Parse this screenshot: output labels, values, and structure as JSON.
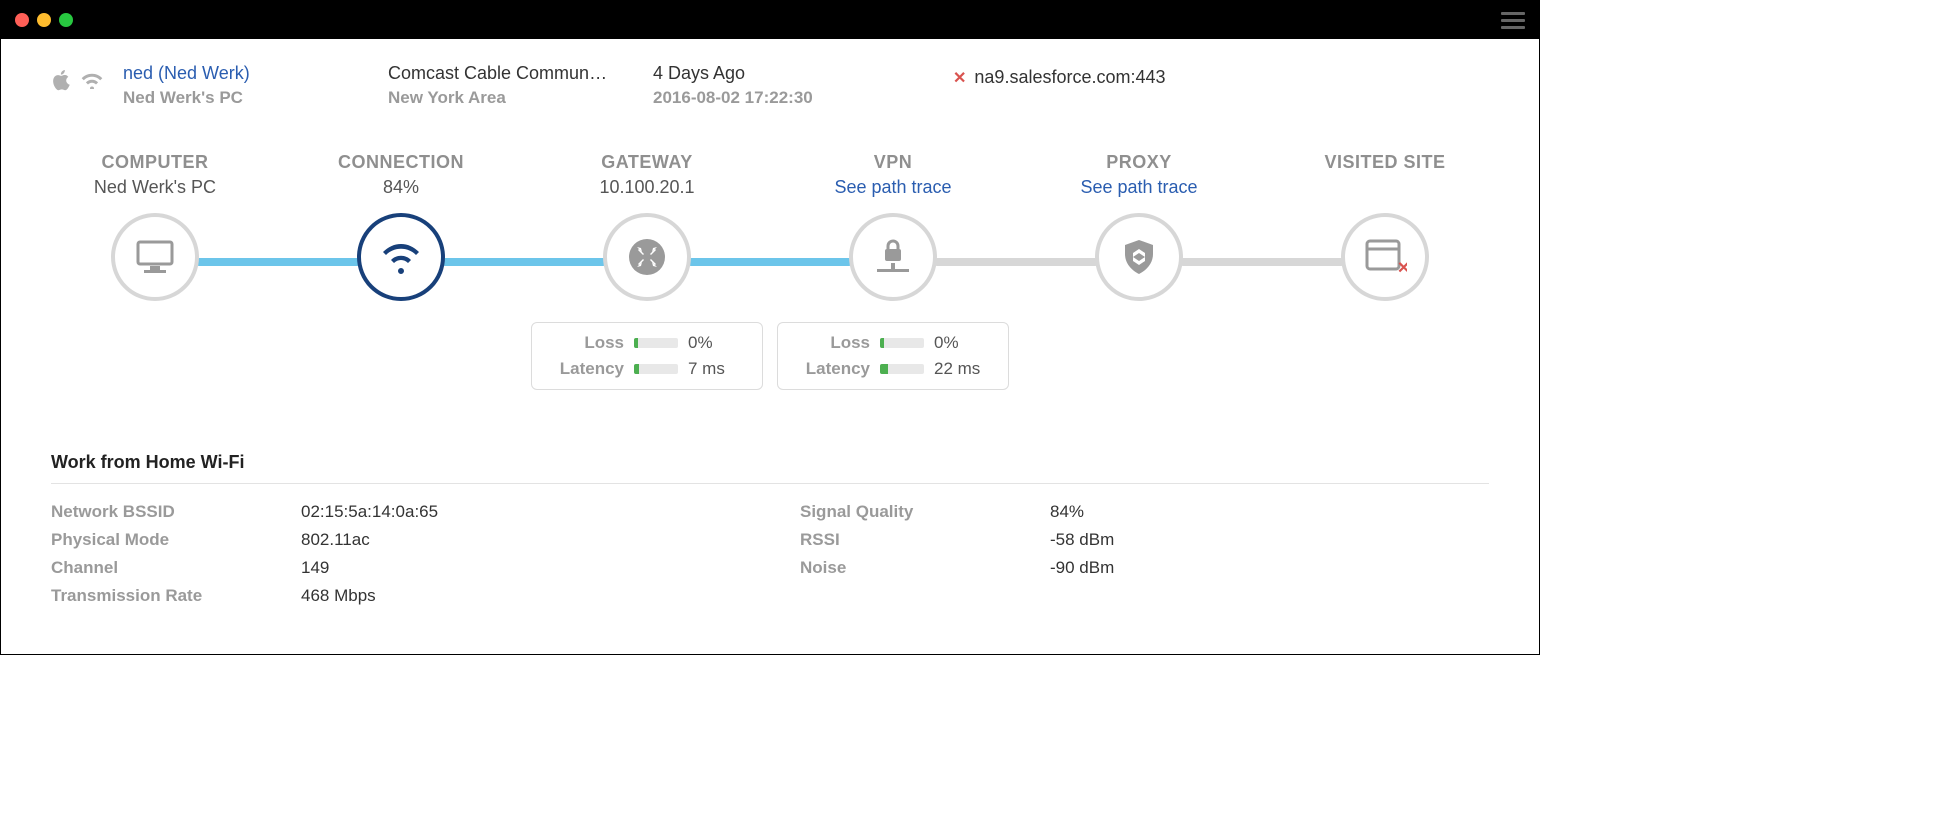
{
  "colors": {
    "titlebar_bg": "#000000",
    "traffic_red": "#ff5f57",
    "traffic_yellow": "#febc2e",
    "traffic_green": "#28c840",
    "muted_text": "#9a9a9a",
    "link_blue": "#2a5db0",
    "accent_blue_line": "#6cc5ea",
    "gray_line": "#d7d7d7",
    "active_ring": "#18407a",
    "bar_green": "#4caf50",
    "error_red": "#d9534f"
  },
  "header": {
    "user_link": "ned (Ned Werk)",
    "user_sub": "Ned Werk's PC",
    "isp": "Comcast Cable Commun…",
    "isp_sub": "New York Area",
    "age": "4 Days Ago",
    "timestamp": "2016-08-02 17:22:30",
    "destination": "na9.salesforce.com:443"
  },
  "path": {
    "nodes": [
      {
        "id": "computer",
        "title": "COMPUTER",
        "sub": "Ned Werk's PC",
        "sub_link": false,
        "icon": "monitor",
        "active": false
      },
      {
        "id": "connection",
        "title": "CONNECTION",
        "sub": "84%",
        "sub_link": false,
        "icon": "wifi",
        "active": true
      },
      {
        "id": "gateway",
        "title": "GATEWAY",
        "sub": "10.100.20.1",
        "sub_link": false,
        "icon": "hub",
        "active": false
      },
      {
        "id": "vpn",
        "title": "VPN",
        "sub": "See path trace",
        "sub_link": true,
        "icon": "vpn",
        "active": false
      },
      {
        "id": "proxy",
        "title": "PROXY",
        "sub": "See path trace",
        "sub_link": true,
        "icon": "shield",
        "active": false
      },
      {
        "id": "site",
        "title": "VISITED SITE",
        "sub": "",
        "sub_link": false,
        "icon": "site-err",
        "active": false
      }
    ],
    "connectors": [
      {
        "from": 0,
        "to": 1,
        "color": "#6cc5ea"
      },
      {
        "from": 1,
        "to": 2,
        "color": "#6cc5ea"
      },
      {
        "from": 2,
        "to": 3,
        "color": "#6cc5ea"
      },
      {
        "from": 3,
        "to": 4,
        "color": "#d7d7d7"
      },
      {
        "from": 4,
        "to": 5,
        "color": "#d7d7d7"
      }
    ],
    "stats": {
      "gateway": {
        "loss_label": "Loss",
        "loss_value": "0%",
        "loss_fill_pct": 8,
        "lat_label": "Latency",
        "lat_value": "7 ms",
        "lat_fill_pct": 12
      },
      "vpn": {
        "loss_label": "Loss",
        "loss_value": "0%",
        "loss_fill_pct": 8,
        "lat_label": "Latency",
        "lat_value": "22 ms",
        "lat_fill_pct": 18
      }
    }
  },
  "details": {
    "title": "Work from Home Wi-Fi",
    "left": [
      {
        "k": "Network BSSID",
        "v": "02:15:5a:14:0a:65"
      },
      {
        "k": "Physical Mode",
        "v": "802.11ac"
      },
      {
        "k": "Channel",
        "v": "149"
      },
      {
        "k": "Transmission Rate",
        "v": "468 Mbps"
      }
    ],
    "right": [
      {
        "k": "Signal Quality",
        "v": "84%"
      },
      {
        "k": "RSSI",
        "v": "-58 dBm"
      },
      {
        "k": "Noise",
        "v": "-90 dBm"
      }
    ]
  }
}
